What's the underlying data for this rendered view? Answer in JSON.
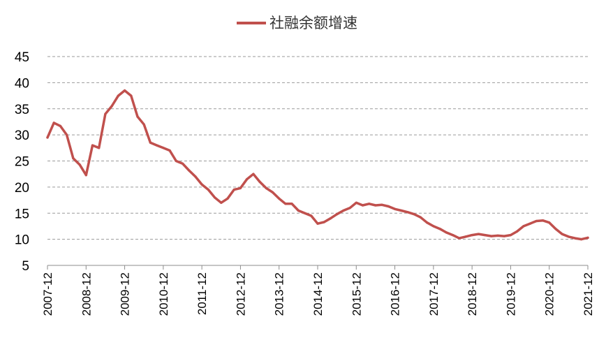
{
  "chart_data": {
    "type": "line",
    "legend_position": "top",
    "grid_y": true,
    "series": [
      {
        "name": "社融余额增速",
        "color": "#c0504d",
        "x": [
          "2007-12",
          "2008-02",
          "2008-04",
          "2008-06",
          "2008-08",
          "2008-10",
          "2008-12",
          "2009-02",
          "2009-04",
          "2009-06",
          "2009-08",
          "2009-10",
          "2009-12",
          "2010-02",
          "2010-04",
          "2010-06",
          "2010-08",
          "2010-10",
          "2010-12",
          "2011-02",
          "2011-04",
          "2011-06",
          "2011-08",
          "2011-10",
          "2011-12",
          "2012-02",
          "2012-04",
          "2012-06",
          "2012-08",
          "2012-10",
          "2012-12",
          "2013-02",
          "2013-04",
          "2013-06",
          "2013-08",
          "2013-10",
          "2013-12",
          "2014-02",
          "2014-04",
          "2014-06",
          "2014-08",
          "2014-10",
          "2014-12",
          "2015-02",
          "2015-04",
          "2015-06",
          "2015-08",
          "2015-10",
          "2015-12",
          "2016-02",
          "2016-04",
          "2016-06",
          "2016-08",
          "2016-10",
          "2016-12",
          "2017-02",
          "2017-04",
          "2017-06",
          "2017-08",
          "2017-10",
          "2017-12",
          "2018-02",
          "2018-04",
          "2018-06",
          "2018-08",
          "2018-10",
          "2018-12",
          "2019-02",
          "2019-04",
          "2019-06",
          "2019-08",
          "2019-10",
          "2019-12",
          "2020-02",
          "2020-04",
          "2020-06",
          "2020-08",
          "2020-10",
          "2020-12",
          "2021-02",
          "2021-04",
          "2021-06",
          "2021-08",
          "2021-10",
          "2021-12"
        ],
        "values": [
          29.5,
          32.3,
          31.7,
          30.0,
          25.5,
          24.3,
          22.3,
          28.0,
          27.5,
          34.0,
          35.5,
          37.5,
          38.5,
          37.5,
          33.5,
          32.0,
          28.5,
          28.0,
          27.5,
          27.0,
          25.0,
          24.5,
          23.2,
          22.0,
          20.5,
          19.5,
          18.0,
          17.0,
          17.8,
          19.5,
          19.8,
          21.5,
          22.5,
          21.0,
          19.8,
          19.0,
          17.8,
          16.8,
          16.8,
          15.5,
          15.0,
          14.5,
          13.0,
          13.3,
          14.0,
          14.8,
          15.5,
          16.0,
          17.0,
          16.5,
          16.8,
          16.5,
          16.6,
          16.3,
          15.8,
          15.5,
          15.2,
          14.8,
          14.2,
          13.2,
          12.5,
          12.0,
          11.3,
          10.8,
          10.2,
          10.5,
          10.8,
          11.0,
          10.8,
          10.6,
          10.7,
          10.6,
          10.8,
          11.5,
          12.5,
          13.0,
          13.5,
          13.6,
          13.2,
          12.0,
          11.0,
          10.5,
          10.2,
          10.0,
          10.3
        ]
      }
    ],
    "y_ticks": [
      5,
      10,
      15,
      20,
      25,
      30,
      35,
      40,
      45
    ],
    "ylim": [
      5,
      45
    ],
    "x_ticks": [
      "2007-12",
      "2008-12",
      "2009-12",
      "2010-12",
      "2011-12",
      "2012-12",
      "2013-12",
      "2014-12",
      "2015-12",
      "2016-12",
      "2017-12",
      "2018-12",
      "2019-12",
      "2020-12",
      "2021-12"
    ]
  }
}
